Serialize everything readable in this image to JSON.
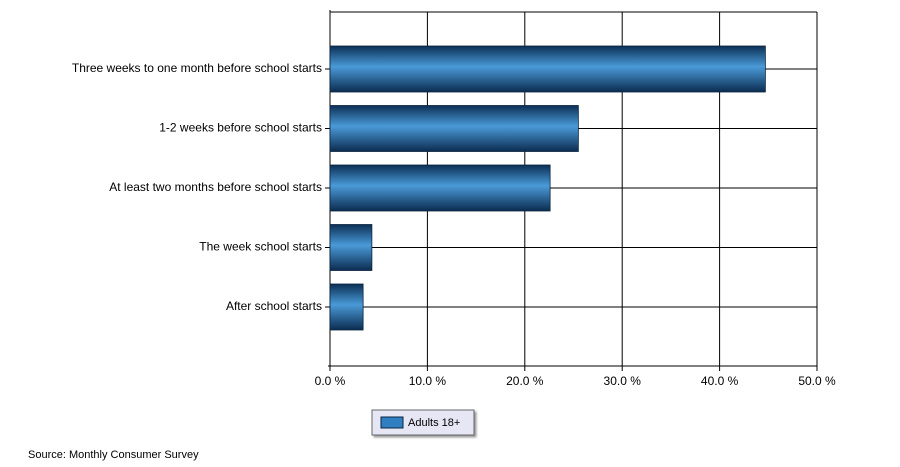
{
  "chart_data": {
    "type": "bar",
    "orientation": "horizontal",
    "categories": [
      "Three weeks to one month before school starts",
      "1-2 weeks before school starts",
      "At least two months before school starts",
      "The week school starts",
      "After school starts"
    ],
    "series": [
      {
        "name": "Adults 18+",
        "color": "#2f7fc1",
        "values": [
          44.7,
          25.5,
          22.6,
          4.3,
          3.4
        ]
      }
    ],
    "xlim": [
      0,
      50
    ],
    "xticks": [
      {
        "value": 0,
        "label": "0.0 %"
      },
      {
        "value": 10,
        "label": "10.0 %"
      },
      {
        "value": 20,
        "label": "20.0 %"
      },
      {
        "value": 30,
        "label": "30.0 %"
      },
      {
        "value": 40,
        "label": "40.0 %"
      },
      {
        "value": 50,
        "label": "50.0 %"
      }
    ],
    "grid": true,
    "legend": "bottom",
    "source": "Source: Monthly Consumer Survey"
  }
}
